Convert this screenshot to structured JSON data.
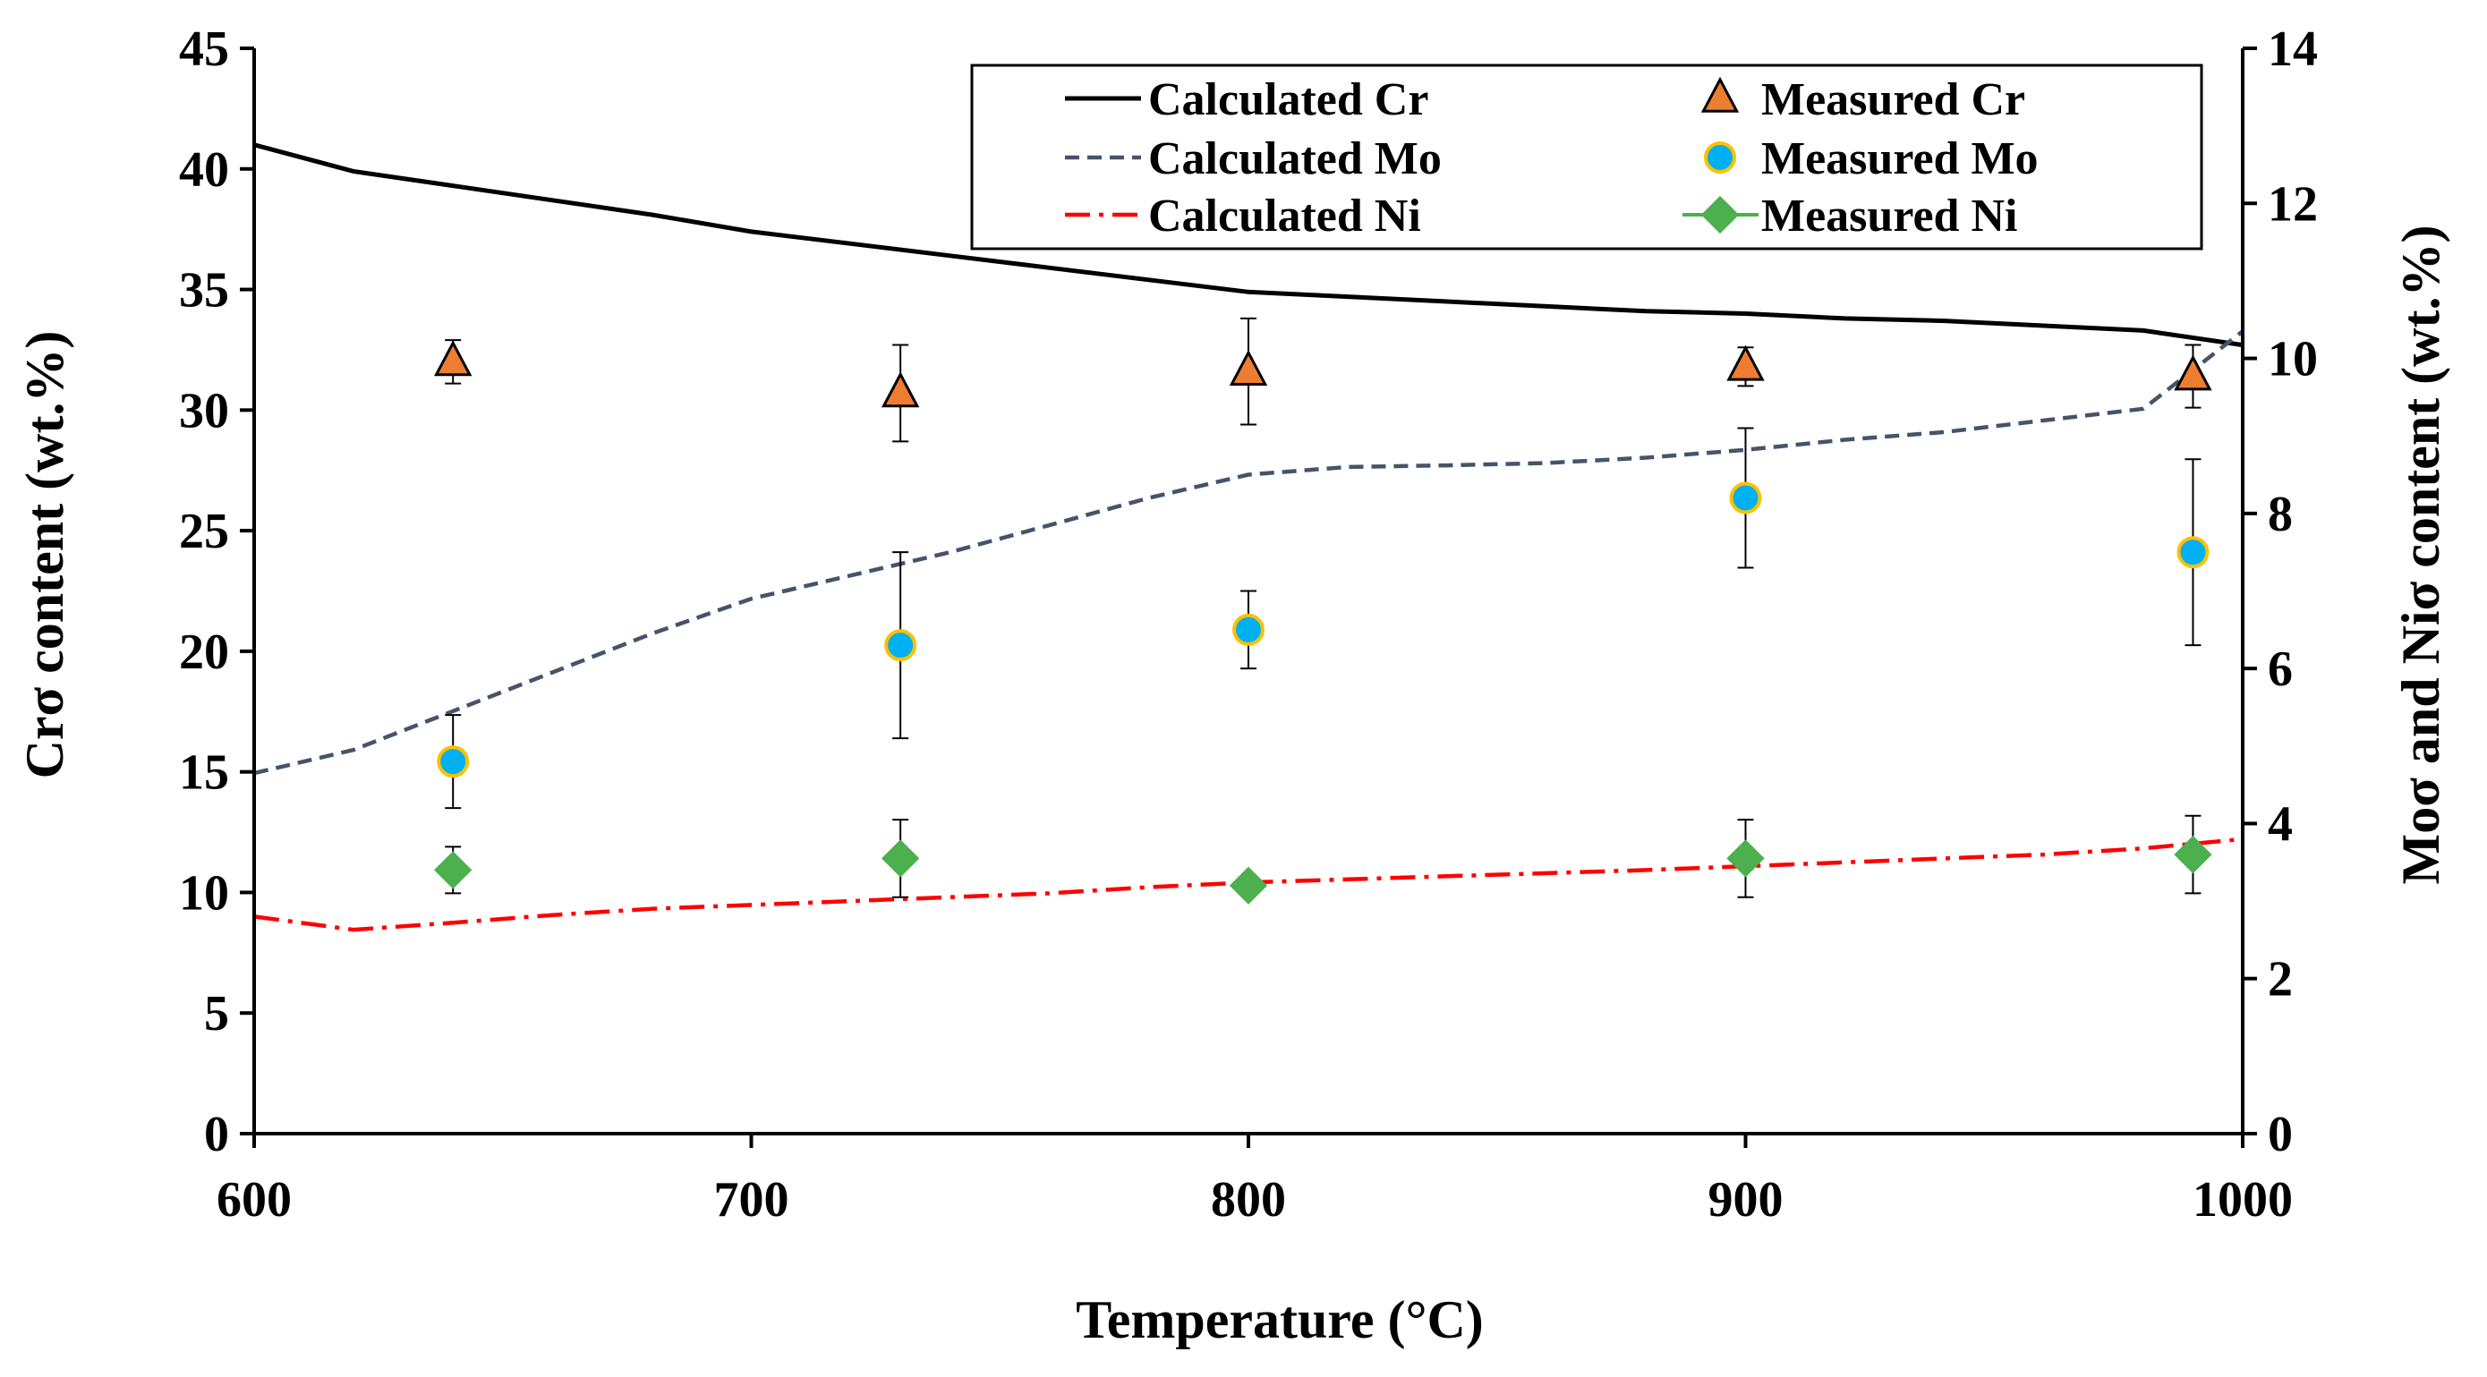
{
  "chart_data": {
    "type": "line",
    "xlabel": "Temperature (°C)",
    "ylabel_left": "Crσ content (wt.%)",
    "ylabel_right": "Moσ and Niσ content (wt.%)",
    "xlim": [
      600,
      1000
    ],
    "ylim_left": [
      0,
      45
    ],
    "ylim_right": [
      0,
      14
    ],
    "x_ticks": [
      600,
      700,
      800,
      900,
      1000
    ],
    "y_left_ticks": [
      0,
      5,
      10,
      15,
      20,
      25,
      30,
      35,
      40,
      45
    ],
    "y_right_ticks": [
      0,
      2,
      4,
      6,
      8,
      10,
      12,
      14
    ],
    "grid": false,
    "legend_position": "top-right",
    "series": [
      {
        "name": "Calculated Cr",
        "kind": "line",
        "axis": "left",
        "color": "#000000",
        "dash": "solid",
        "x": [
          600,
          620,
          640,
          660,
          680,
          700,
          720,
          740,
          760,
          780,
          800,
          820,
          840,
          860,
          880,
          900,
          920,
          940,
          960,
          980,
          1000
        ],
        "y": [
          41.0,
          39.9,
          39.3,
          38.7,
          38.1,
          37.4,
          36.9,
          36.4,
          35.9,
          35.4,
          34.9,
          34.7,
          34.5,
          34.3,
          34.1,
          34.0,
          33.8,
          33.7,
          33.5,
          33.3,
          32.7
        ]
      },
      {
        "name": "Calculated Mo",
        "kind": "line",
        "axis": "right",
        "color": "#44546A",
        "dash": "dashed",
        "x": [
          600,
          620,
          640,
          660,
          680,
          700,
          720,
          740,
          760,
          780,
          800,
          820,
          840,
          860,
          880,
          900,
          920,
          940,
          960,
          980,
          1000
        ],
        "y": [
          4.65,
          4.95,
          5.45,
          5.95,
          6.45,
          6.9,
          7.2,
          7.5,
          7.85,
          8.2,
          8.5,
          8.6,
          8.62,
          8.65,
          8.72,
          8.82,
          8.95,
          9.05,
          9.2,
          9.35,
          10.35
        ]
      },
      {
        "name": "Calculated Ni",
        "kind": "line",
        "axis": "right",
        "color": "#FF0000",
        "dash": "dashdot",
        "x": [
          600,
          620,
          640,
          660,
          680,
          700,
          720,
          740,
          760,
          780,
          800,
          820,
          840,
          860,
          880,
          900,
          920,
          940,
          960,
          980,
          1000
        ],
        "y": [
          2.8,
          2.63,
          2.72,
          2.82,
          2.9,
          2.95,
          3.0,
          3.05,
          3.1,
          3.18,
          3.24,
          3.28,
          3.32,
          3.36,
          3.4,
          3.45,
          3.5,
          3.55,
          3.6,
          3.68,
          3.8
        ]
      },
      {
        "name": "Measured Cr",
        "kind": "points",
        "axis": "left",
        "marker": "triangle",
        "color": "#ED7D31",
        "edge": "#000000",
        "x": [
          640,
          730,
          800,
          900,
          990
        ],
        "y": [
          32.0,
          30.7,
          31.6,
          31.8,
          31.4
        ],
        "err": [
          0.9,
          2.0,
          2.2,
          0.8,
          1.3
        ]
      },
      {
        "name": "Measured Mo",
        "kind": "points",
        "axis": "right",
        "marker": "circle",
        "color": "#00B0F0",
        "edge": "#FFC000",
        "x": [
          640,
          730,
          800,
          900,
          990
        ],
        "y": [
          4.8,
          6.3,
          6.5,
          8.2,
          7.5
        ],
        "err": [
          0.6,
          1.2,
          0.5,
          0.9,
          1.2
        ]
      },
      {
        "name": "Measured Ni",
        "kind": "points",
        "axis": "right",
        "marker": "diamond",
        "color": "#4CB04F",
        "edge": "#4CB04F",
        "x": [
          640,
          730,
          800,
          900,
          990
        ],
        "y": [
          3.4,
          3.55,
          3.2,
          3.55,
          3.6
        ],
        "err": [
          0.3,
          0.5,
          0.0,
          0.5,
          0.5
        ]
      }
    ]
  }
}
